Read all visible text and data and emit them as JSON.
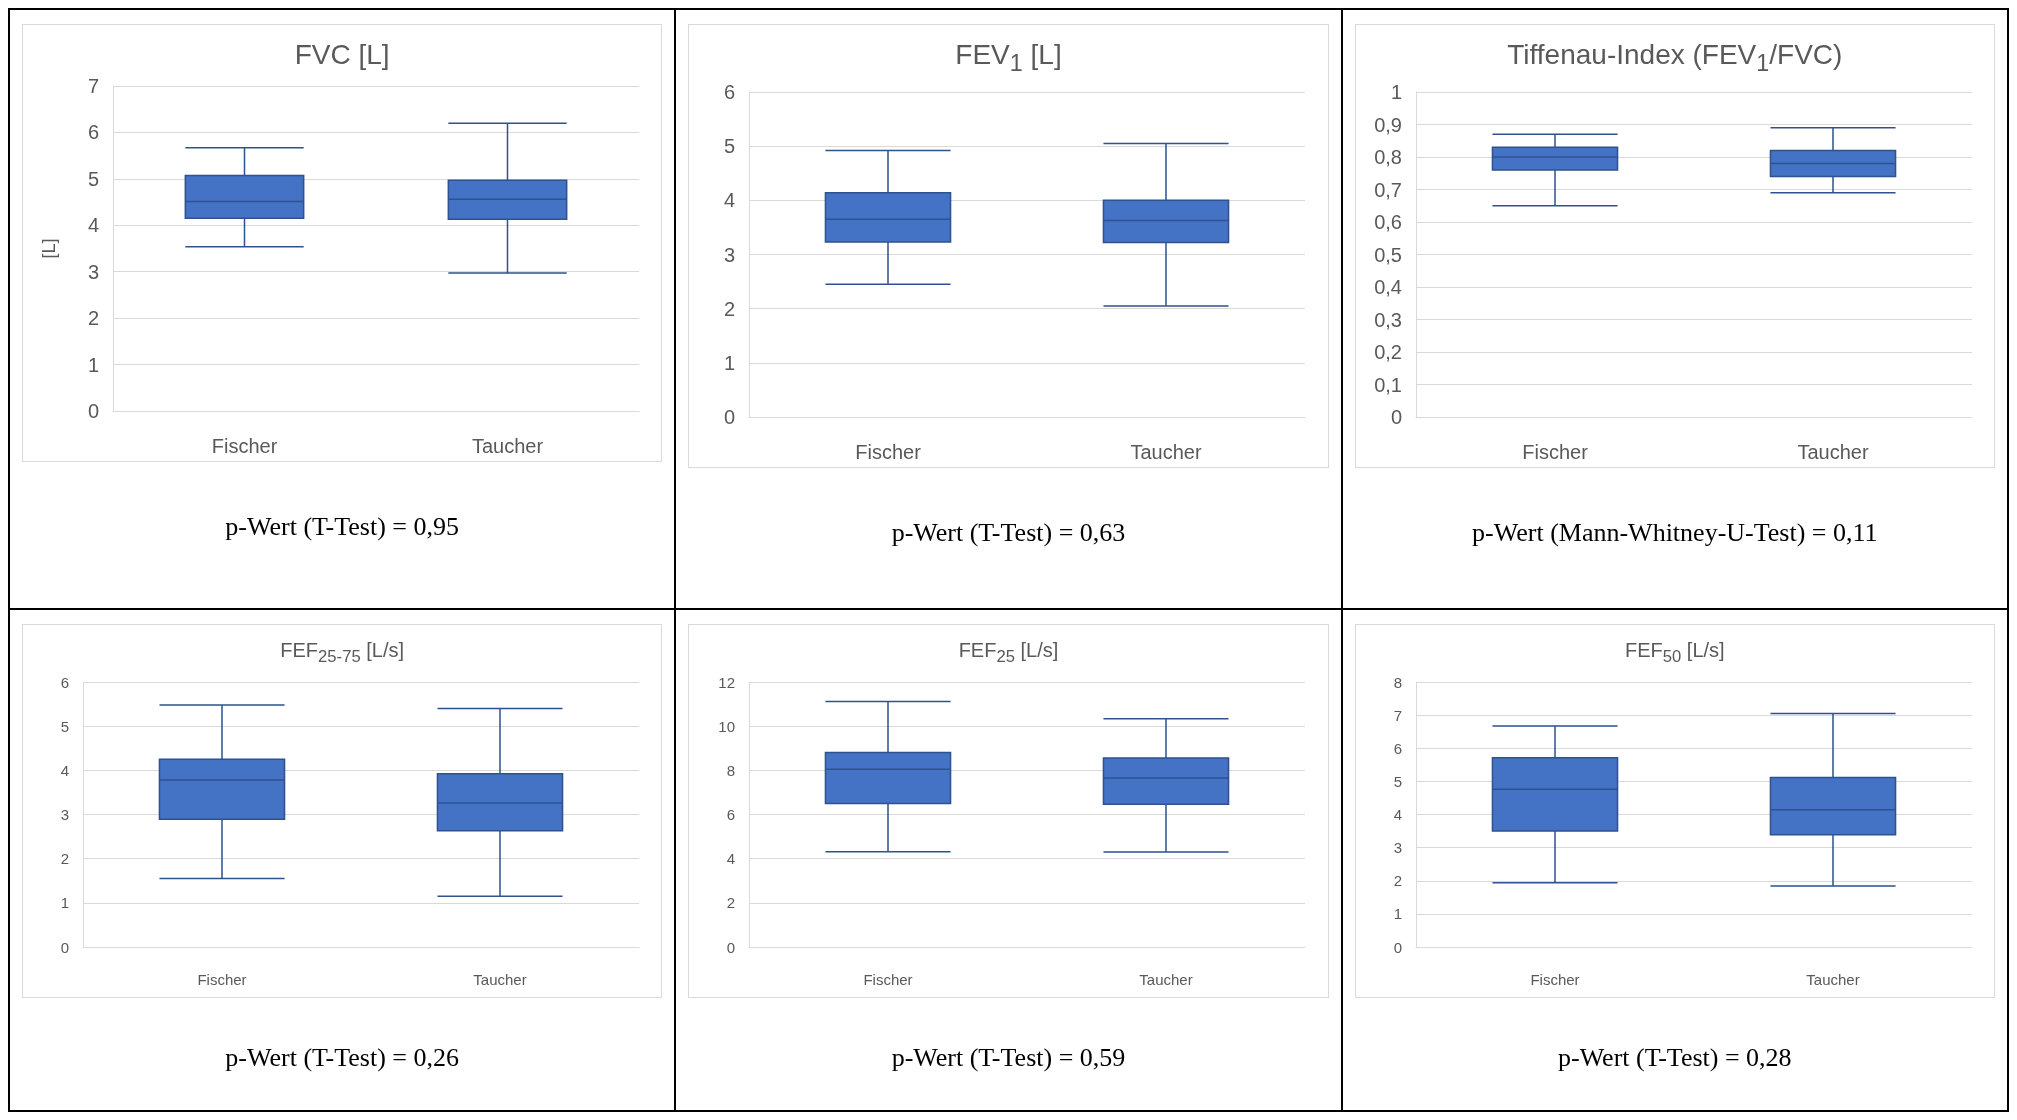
{
  "chart_data": [
    {
      "type": "box",
      "title": "FVC [L]",
      "ylabel": "[L]",
      "categories": [
        "Fischer",
        "Taucher"
      ],
      "color": "#4472c4",
      "ylim": [
        0,
        7
      ],
      "yticks": [
        0,
        1,
        2,
        3,
        4,
        5,
        6,
        7
      ],
      "grid": "y",
      "annotations": [
        "p-Wert (T-Test) = 0,95"
      ],
      "boxes": [
        {
          "low": 3.54,
          "q1": 4.15,
          "median": 4.51,
          "q3": 5.07,
          "high": 5.67
        },
        {
          "low": 2.97,
          "q1": 4.13,
          "median": 4.56,
          "q3": 4.97,
          "high": 6.2
        }
      ]
    },
    {
      "type": "box",
      "title": "FEV$_{1}$ [L]",
      "categories": [
        "Fischer",
        "Taucher"
      ],
      "color": "#4472c4",
      "ylim": [
        0,
        6
      ],
      "yticks": [
        0,
        1,
        2,
        3,
        4,
        5,
        6
      ],
      "grid": "y",
      "annotations": [
        "p-Wert (T-Test) = 0,63"
      ],
      "boxes": [
        {
          "low": 2.45,
          "q1": 3.23,
          "median": 3.65,
          "q3": 4.14,
          "high": 4.92
        },
        {
          "low": 2.05,
          "q1": 3.22,
          "median": 3.63,
          "q3": 4.0,
          "high": 5.05
        }
      ]
    },
    {
      "type": "box",
      "title": "Tiffenau-Index (FEV$_{1}$/FVC)",
      "categories": [
        "Fischer",
        "Taucher"
      ],
      "color": "#4472c4",
      "ylim": [
        0,
        1
      ],
      "yticks": [
        0,
        {
          "value": 0.1,
          "label": "0,1"
        },
        {
          "value": 0.2,
          "label": "0,2"
        },
        {
          "value": 0.3,
          "label": "0,3"
        },
        {
          "value": 0.4,
          "label": "0,4"
        },
        {
          "value": 0.5,
          "label": "0,5"
        },
        {
          "value": 0.6,
          "label": "0,6"
        },
        {
          "value": 0.7,
          "label": "0,7"
        },
        {
          "value": 0.8,
          "label": "0,8"
        },
        {
          "value": 0.9,
          "label": "0,9"
        },
        1
      ],
      "grid": "y",
      "annotations": [
        "p-Wert (Mann-Whitney-U-Test) = 0,11"
      ],
      "boxes": [
        {
          "low": 0.65,
          "q1": 0.76,
          "median": 0.8,
          "q3": 0.83,
          "high": 0.87
        },
        {
          "low": 0.69,
          "q1": 0.74,
          "median": 0.78,
          "q3": 0.82,
          "high": 0.89
        }
      ]
    },
    {
      "type": "box",
      "title": "FEF$_{25-75}$ [L/s]",
      "categories": [
        "Fischer",
        "Taucher"
      ],
      "color": "#4472c4",
      "ylim": [
        0,
        6
      ],
      "yticks": [
        0,
        1,
        2,
        3,
        4,
        5,
        6
      ],
      "grid": "y",
      "annotations": [
        "p-Wert (T-Test) = 0,26"
      ],
      "boxes": [
        {
          "low": 1.55,
          "q1": 2.89,
          "median": 3.78,
          "q3": 4.25,
          "high": 5.48
        },
        {
          "low": 1.15,
          "q1": 2.63,
          "median": 3.26,
          "q3": 3.92,
          "high": 5.4
        }
      ]
    },
    {
      "type": "box",
      "title": "FEF$_{25}$ [L/s]",
      "categories": [
        "Fischer",
        "Taucher"
      ],
      "color": "#4472c4",
      "ylim": [
        0,
        12
      ],
      "yticks": [
        0,
        2,
        4,
        6,
        8,
        10,
        12
      ],
      "grid": "y",
      "annotations": [
        "p-Wert (T-Test) = 0,59"
      ],
      "boxes": [
        {
          "low": 4.31,
          "q1": 6.5,
          "median": 8.05,
          "q3": 8.81,
          "high": 11.12
        },
        {
          "low": 4.3,
          "q1": 6.46,
          "median": 7.65,
          "q3": 8.56,
          "high": 10.34
        }
      ]
    },
    {
      "type": "box",
      "title": "FEF$_{50}$ [L/s]",
      "categories": [
        "Fischer",
        "Taucher"
      ],
      "color": "#4472c4",
      "ylim": [
        0,
        8
      ],
      "yticks": [
        0,
        1,
        2,
        3,
        4,
        5,
        6,
        7,
        8
      ],
      "grid": "y",
      "annotations": [
        "p-Wert (T-Test) = 0,28"
      ],
      "boxes": [
        {
          "low": 1.94,
          "q1": 3.5,
          "median": 4.76,
          "q3": 5.71,
          "high": 6.67
        },
        {
          "low": 1.84,
          "q1": 3.39,
          "median": 4.14,
          "q3": 5.12,
          "high": 7.05
        }
      ]
    }
  ]
}
